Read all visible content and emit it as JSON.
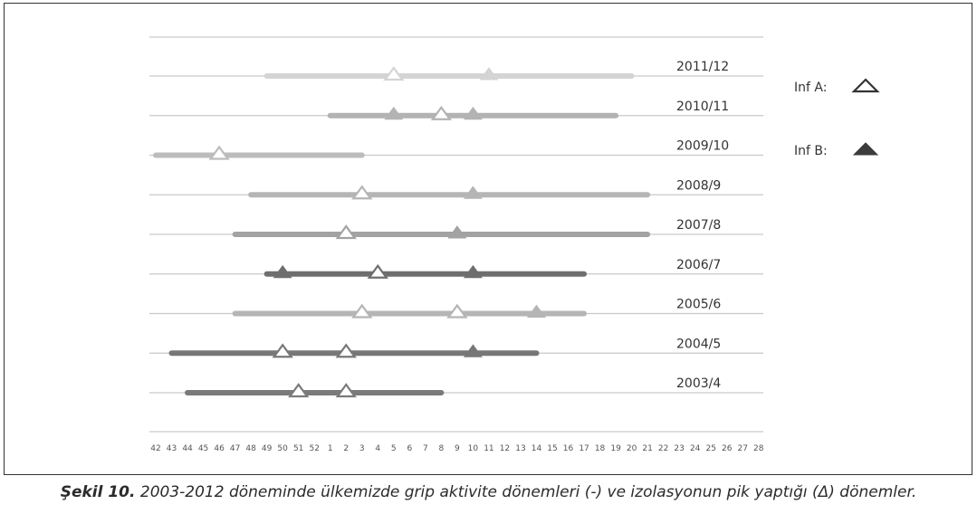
{
  "caption": {
    "label": "Şekil 10.",
    "text": "2003-2012 döneminde ülkemizde grip aktivite dönemleri (-) ve izolasyonun pik yaptığı (Δ) dönemler."
  },
  "chart_data": {
    "type": "timeline",
    "xlabel": "",
    "ylabel": "",
    "x_ticks": [
      "42",
      "43",
      "44",
      "45",
      "46",
      "47",
      "48",
      "49",
      "50",
      "51",
      "52",
      "1",
      "2",
      "3",
      "4",
      "5",
      "6",
      "7",
      "8",
      "9",
      "10",
      "11",
      "12",
      "13",
      "14",
      "15",
      "16",
      "17",
      "18",
      "19",
      "20",
      "21",
      "22",
      "23",
      "24",
      "25",
      "26",
      "27",
      "28"
    ],
    "legend": [
      {
        "key": "inf_a",
        "label": "Inf A:",
        "marker": "hollow-triangle"
      },
      {
        "key": "inf_b",
        "label": "Inf B:",
        "marker": "filled-triangle"
      }
    ],
    "series": [
      {
        "season": "2011/12",
        "activity_start_week": "49",
        "activity_end_week": "20",
        "color": "#d4d4d4",
        "inf_a_peaks": [
          "5"
        ],
        "inf_b_peaks": [
          "11"
        ]
      },
      {
        "season": "2010/11",
        "activity_start_week": "1",
        "activity_end_week": "19",
        "color": "#b3b3b3",
        "inf_a_peaks": [
          "8"
        ],
        "inf_b_peaks": [
          "5",
          "10"
        ]
      },
      {
        "season": "2009/10",
        "activity_start_week": "42",
        "activity_end_week": "3",
        "color": "#bcbcbc",
        "inf_a_peaks": [
          "46"
        ],
        "inf_b_peaks": []
      },
      {
        "season": "2008/9",
        "activity_start_week": "48",
        "activity_end_week": "21",
        "color": "#b5b5b5",
        "inf_a_peaks": [
          "3"
        ],
        "inf_b_peaks": [
          "10"
        ]
      },
      {
        "season": "2007/8",
        "activity_start_week": "47",
        "activity_end_week": "21",
        "color": "#a3a3a3",
        "inf_a_peaks": [
          "2"
        ],
        "inf_b_peaks": [
          "9"
        ]
      },
      {
        "season": "2006/7",
        "activity_start_week": "49",
        "activity_end_week": "17",
        "color": "#6e6e6e",
        "inf_a_peaks": [
          "4"
        ],
        "inf_b_peaks": [
          "50",
          "10"
        ]
      },
      {
        "season": "2005/6",
        "activity_start_week": "47",
        "activity_end_week": "17",
        "color": "#b5b5b5",
        "inf_a_peaks": [
          "3",
          "9"
        ],
        "inf_b_peaks": [
          "14"
        ]
      },
      {
        "season": "2004/5",
        "activity_start_week": "43",
        "activity_end_week": "14",
        "color": "#777777",
        "inf_a_peaks": [
          "50",
          "2"
        ],
        "inf_b_peaks": [
          "10"
        ]
      },
      {
        "season": "2003/4",
        "activity_start_week": "44",
        "activity_end_week": "8",
        "color": "#7a7a7a",
        "inf_a_peaks": [
          "51",
          "2"
        ],
        "inf_b_peaks": []
      }
    ]
  }
}
